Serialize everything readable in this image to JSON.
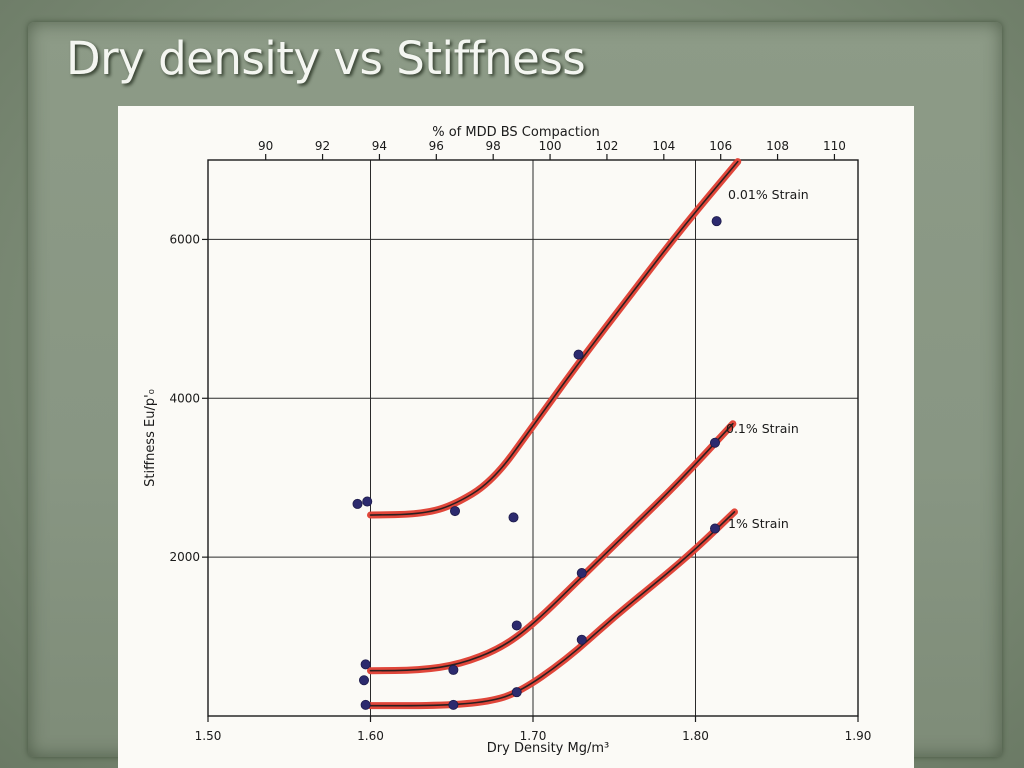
{
  "slide": {
    "title": "Dry density vs Stiffness"
  },
  "chart_data": {
    "type": "line",
    "xlabel": "Dry Density Mg/m³",
    "ylabel": "Stiffness Eu/p'₀",
    "top_axis_label": "% of MDD BS Compaction",
    "xlim": [
      1.5,
      1.9
    ],
    "ylim": [
      0,
      7000
    ],
    "x_ticks": [
      "1.50",
      "1.60",
      "1.70",
      "1.80",
      "1.90"
    ],
    "y_ticks": [
      "2000",
      "4000",
      "6000"
    ],
    "top_ticks": [
      "90",
      "92",
      "94",
      "96",
      "98",
      "100",
      "102",
      "104",
      "106",
      "108",
      "110"
    ],
    "grid": true,
    "series": [
      {
        "name": "0.01% Strain",
        "curve": [
          [
            1.6,
            2530
          ],
          [
            1.63,
            2540
          ],
          [
            1.65,
            2640
          ],
          [
            1.675,
            2950
          ],
          [
            1.7,
            3650
          ],
          [
            1.73,
            4500
          ],
          [
            1.76,
            5300
          ],
          [
            1.79,
            6100
          ],
          [
            1.826,
            6980
          ]
        ],
        "points": [
          [
            1.592,
            2670
          ],
          [
            1.598,
            2700
          ],
          [
            1.652,
            2580
          ],
          [
            1.688,
            2500
          ],
          [
            1.728,
            4550
          ],
          [
            1.813,
            6230
          ]
        ]
      },
      {
        "name": "0.1% Strain",
        "curve": [
          [
            1.6,
            570
          ],
          [
            1.63,
            575
          ],
          [
            1.655,
            650
          ],
          [
            1.68,
            850
          ],
          [
            1.7,
            1150
          ],
          [
            1.73,
            1750
          ],
          [
            1.76,
            2350
          ],
          [
            1.79,
            2950
          ],
          [
            1.823,
            3680
          ]
        ],
        "points": [
          [
            1.597,
            650
          ],
          [
            1.596,
            450
          ],
          [
            1.651,
            580
          ],
          [
            1.69,
            1140
          ],
          [
            1.73,
            1800
          ],
          [
            1.812,
            3440
          ]
        ]
      },
      {
        "name": "1% Strain",
        "curve": [
          [
            1.6,
            130
          ],
          [
            1.64,
            130
          ],
          [
            1.67,
            170
          ],
          [
            1.69,
            280
          ],
          [
            1.72,
            700
          ],
          [
            1.75,
            1250
          ],
          [
            1.78,
            1750
          ],
          [
            1.8,
            2100
          ],
          [
            1.824,
            2570
          ]
        ],
        "points": [
          [
            1.597,
            140
          ],
          [
            1.651,
            140
          ],
          [
            1.69,
            300
          ],
          [
            1.73,
            960
          ],
          [
            1.812,
            2360
          ]
        ]
      }
    ]
  }
}
